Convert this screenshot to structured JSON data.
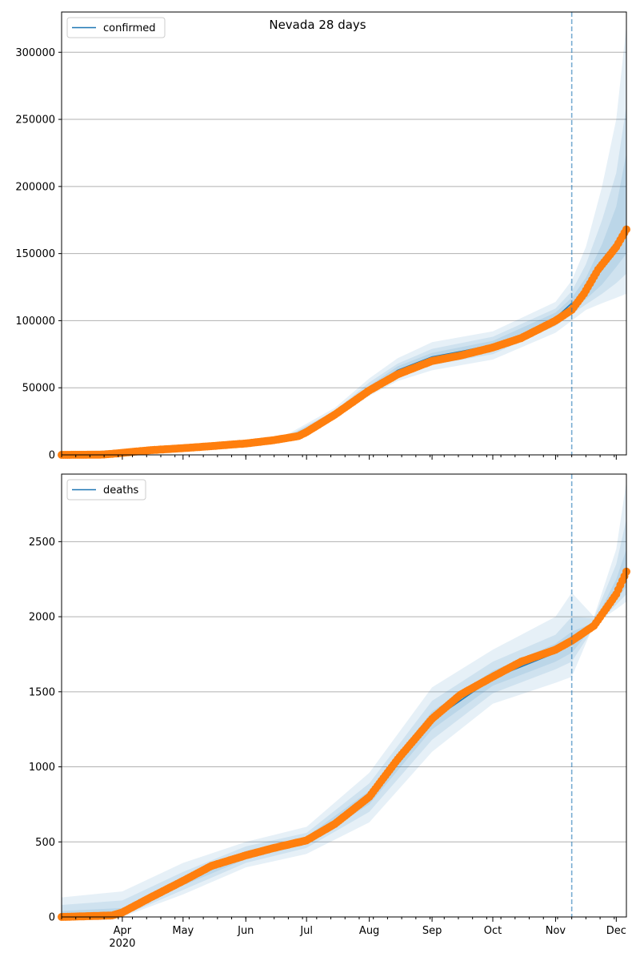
{
  "chart_data": {
    "title": "Nevada 28 days",
    "colors": {
      "model": "#1f77b4",
      "observed": "#ff7f0e",
      "band": "#1f77b4",
      "grid": "#b0b0b0"
    },
    "x_axis": {
      "type": "date",
      "range": [
        "2020-03-02",
        "2020-12-06"
      ],
      "month_ticks": [
        "2020-04-01",
        "2020-05-01",
        "2020-06-01",
        "2020-07-01",
        "2020-08-01",
        "2020-09-01",
        "2020-10-01",
        "2020-11-01",
        "2020-12-01"
      ],
      "month_labels": [
        "Apr",
        "May",
        "Jun",
        "Jul",
        "Aug",
        "Sep",
        "Oct",
        "Nov",
        "Dec"
      ],
      "year_label": "2020"
    },
    "forecast_start": "2020-11-09",
    "panels": [
      {
        "type": "line",
        "series_name": "confirmed",
        "ylim": [
          0,
          330000
        ],
        "yticks": [
          0,
          50000,
          100000,
          150000,
          200000,
          250000,
          300000
        ],
        "grid": true,
        "legend": "top-left",
        "observed": [
          [
            "2020-03-02",
            0
          ],
          [
            "2020-03-16",
            100
          ],
          [
            "2020-03-23",
            250
          ],
          [
            "2020-04-01",
            1500
          ],
          [
            "2020-04-15",
            3500
          ],
          [
            "2020-05-01",
            5000
          ],
          [
            "2020-05-15",
            6500
          ],
          [
            "2020-06-01",
            8500
          ],
          [
            "2020-06-15",
            11000
          ],
          [
            "2020-06-27",
            14000
          ],
          [
            "2020-07-01",
            17000
          ],
          [
            "2020-07-15",
            30000
          ],
          [
            "2020-08-01",
            48000
          ],
          [
            "2020-08-15",
            60000
          ],
          [
            "2020-09-01",
            70000
          ],
          [
            "2020-09-15",
            74000
          ],
          [
            "2020-10-01",
            80000
          ],
          [
            "2020-10-15",
            87000
          ],
          [
            "2020-11-01",
            100000
          ],
          [
            "2020-11-09",
            108000
          ],
          [
            "2020-11-15",
            120000
          ],
          [
            "2020-11-22",
            138000
          ],
          [
            "2020-12-01",
            155000
          ],
          [
            "2020-12-06",
            168000
          ]
        ],
        "model": [
          [
            "2020-03-02",
            0
          ],
          [
            "2020-04-01",
            1500
          ],
          [
            "2020-05-01",
            5000
          ],
          [
            "2020-06-01",
            8500
          ],
          [
            "2020-07-01",
            17000
          ],
          [
            "2020-07-15",
            30000
          ],
          [
            "2020-08-01",
            49000
          ],
          [
            "2020-08-15",
            63000
          ],
          [
            "2020-09-01",
            73000
          ],
          [
            "2020-09-15",
            77000
          ],
          [
            "2020-10-01",
            82000
          ],
          [
            "2020-10-15",
            89000
          ],
          [
            "2020-11-01",
            102000
          ],
          [
            "2020-11-09",
            113000
          ]
        ],
        "bands": [
          {
            "dates": [
              "2020-03-02",
              "2020-05-01",
              "2020-06-20",
              "2020-07-15",
              "2020-08-01",
              "2020-08-15",
              "2020-09-01",
              "2020-10-01",
              "2020-11-01",
              "2020-11-09",
              "2020-11-16",
              "2020-11-24",
              "2020-12-01",
              "2020-12-06"
            ],
            "low": [
              0,
              4000,
              10000,
              27000,
              44000,
              55000,
              63000,
              71000,
              91000,
              100000,
              108000,
              113000,
              117000,
              120000
            ],
            "high": [
              2000,
              6000,
              14000,
              35000,
              57000,
              72000,
              84000,
              92000,
              114000,
              130000,
              155000,
              200000,
              250000,
              320000
            ]
          },
          {
            "dates": [
              "2020-03-02",
              "2020-05-01",
              "2020-06-20",
              "2020-07-15",
              "2020-08-01",
              "2020-08-15",
              "2020-09-01",
              "2020-10-01",
              "2020-11-01",
              "2020-11-09",
              "2020-11-16",
              "2020-11-24",
              "2020-12-01",
              "2020-12-06"
            ],
            "low": [
              0,
              4500,
              11000,
              28500,
              46000,
              58000,
              67000,
              75000,
              96000,
              105000,
              112000,
              120000,
              128000,
              135000
            ],
            "high": [
              1500,
              5500,
              13000,
              33000,
              54000,
              68000,
              79000,
              88000,
              109000,
              122000,
              142000,
              175000,
              210000,
              260000
            ]
          },
          {
            "dates": [
              "2020-03-02",
              "2020-05-01",
              "2020-06-20",
              "2020-07-15",
              "2020-08-01",
              "2020-08-15",
              "2020-09-01",
              "2020-10-01",
              "2020-11-01",
              "2020-11-09",
              "2020-11-16",
              "2020-11-24",
              "2020-12-01",
              "2020-12-06"
            ],
            "low": [
              0,
              4800,
              11500,
              29300,
              47500,
              60500,
              70000,
              79000,
              99000,
              109000,
              116000,
              127000,
              140000,
              150000
            ],
            "high": [
              1000,
              5200,
              12500,
              31500,
              51500,
              66000,
              76000,
              85000,
              106000,
              117000,
              132000,
              157000,
              185000,
              225000
            ]
          }
        ]
      },
      {
        "type": "line",
        "series_name": "deaths",
        "ylim": [
          0,
          2950
        ],
        "yticks": [
          0,
          500,
          1000,
          1500,
          2000,
          2500
        ],
        "grid": true,
        "legend": "top-left",
        "observed": [
          [
            "2020-03-02",
            0
          ],
          [
            "2020-03-27",
            10
          ],
          [
            "2020-04-01",
            30
          ],
          [
            "2020-04-15",
            130
          ],
          [
            "2020-05-01",
            240
          ],
          [
            "2020-05-15",
            340
          ],
          [
            "2020-06-01",
            410
          ],
          [
            "2020-06-15",
            460
          ],
          [
            "2020-07-01",
            510
          ],
          [
            "2020-07-15",
            620
          ],
          [
            "2020-08-01",
            800
          ],
          [
            "2020-08-15",
            1050
          ],
          [
            "2020-09-01",
            1320
          ],
          [
            "2020-09-15",
            1480
          ],
          [
            "2020-10-01",
            1600
          ],
          [
            "2020-10-15",
            1700
          ],
          [
            "2020-11-01",
            1780
          ],
          [
            "2020-11-09",
            1840
          ],
          [
            "2020-11-20",
            1940
          ],
          [
            "2020-12-01",
            2150
          ],
          [
            "2020-12-06",
            2300
          ]
        ],
        "model": [
          [
            "2020-03-02",
            0
          ],
          [
            "2020-04-01",
            30
          ],
          [
            "2020-05-01",
            240
          ],
          [
            "2020-06-01",
            410
          ],
          [
            "2020-07-01",
            510
          ],
          [
            "2020-08-01",
            800
          ],
          [
            "2020-09-01",
            1310
          ],
          [
            "2020-10-01",
            1590
          ],
          [
            "2020-11-01",
            1760
          ],
          [
            "2020-11-09",
            1830
          ]
        ],
        "bands": [
          {
            "dates": [
              "2020-03-02",
              "2020-04-01",
              "2020-05-01",
              "2020-06-01",
              "2020-07-01",
              "2020-08-01",
              "2020-09-01",
              "2020-10-01",
              "2020-11-01",
              "2020-11-09",
              "2020-11-20",
              "2020-12-01",
              "2020-12-06"
            ],
            "low": [
              0,
              0,
              150,
              330,
              420,
              630,
              1100,
              1420,
              1560,
              1600,
              1950,
              2050,
              2100
            ],
            "high": [
              130,
              170,
              360,
              500,
              600,
              960,
              1530,
              1780,
              2000,
              2160,
              2000,
              2450,
              2900
            ]
          },
          {
            "dates": [
              "2020-03-02",
              "2020-04-01",
              "2020-05-01",
              "2020-06-01",
              "2020-07-01",
              "2020-08-01",
              "2020-09-01",
              "2020-10-01",
              "2020-11-01",
              "2020-11-09",
              "2020-11-20",
              "2020-12-01",
              "2020-12-06"
            ],
            "low": [
              0,
              5,
              180,
              360,
              460,
              700,
              1180,
              1490,
              1650,
              1700,
              1930,
              2080,
              2150
            ],
            "high": [
              80,
              110,
              300,
              470,
              560,
              890,
              1440,
              1700,
              1880,
              2000,
              1990,
              2350,
              2650
            ]
          },
          {
            "dates": [
              "2020-03-02",
              "2020-04-01",
              "2020-05-01",
              "2020-06-01",
              "2020-07-01",
              "2020-08-01",
              "2020-09-01",
              "2020-10-01",
              "2020-11-01",
              "2020-11-09",
              "2020-11-20",
              "2020-12-01",
              "2020-12-06"
            ],
            "low": [
              0,
              15,
              210,
              385,
              485,
              750,
              1250,
              1540,
              1700,
              1760,
              1940,
              2110,
              2200
            ],
            "high": [
              40,
              60,
              270,
              440,
              535,
              840,
              1370,
              1640,
              1820,
              1900,
              1960,
              2250,
              2450
            ]
          }
        ]
      }
    ]
  }
}
